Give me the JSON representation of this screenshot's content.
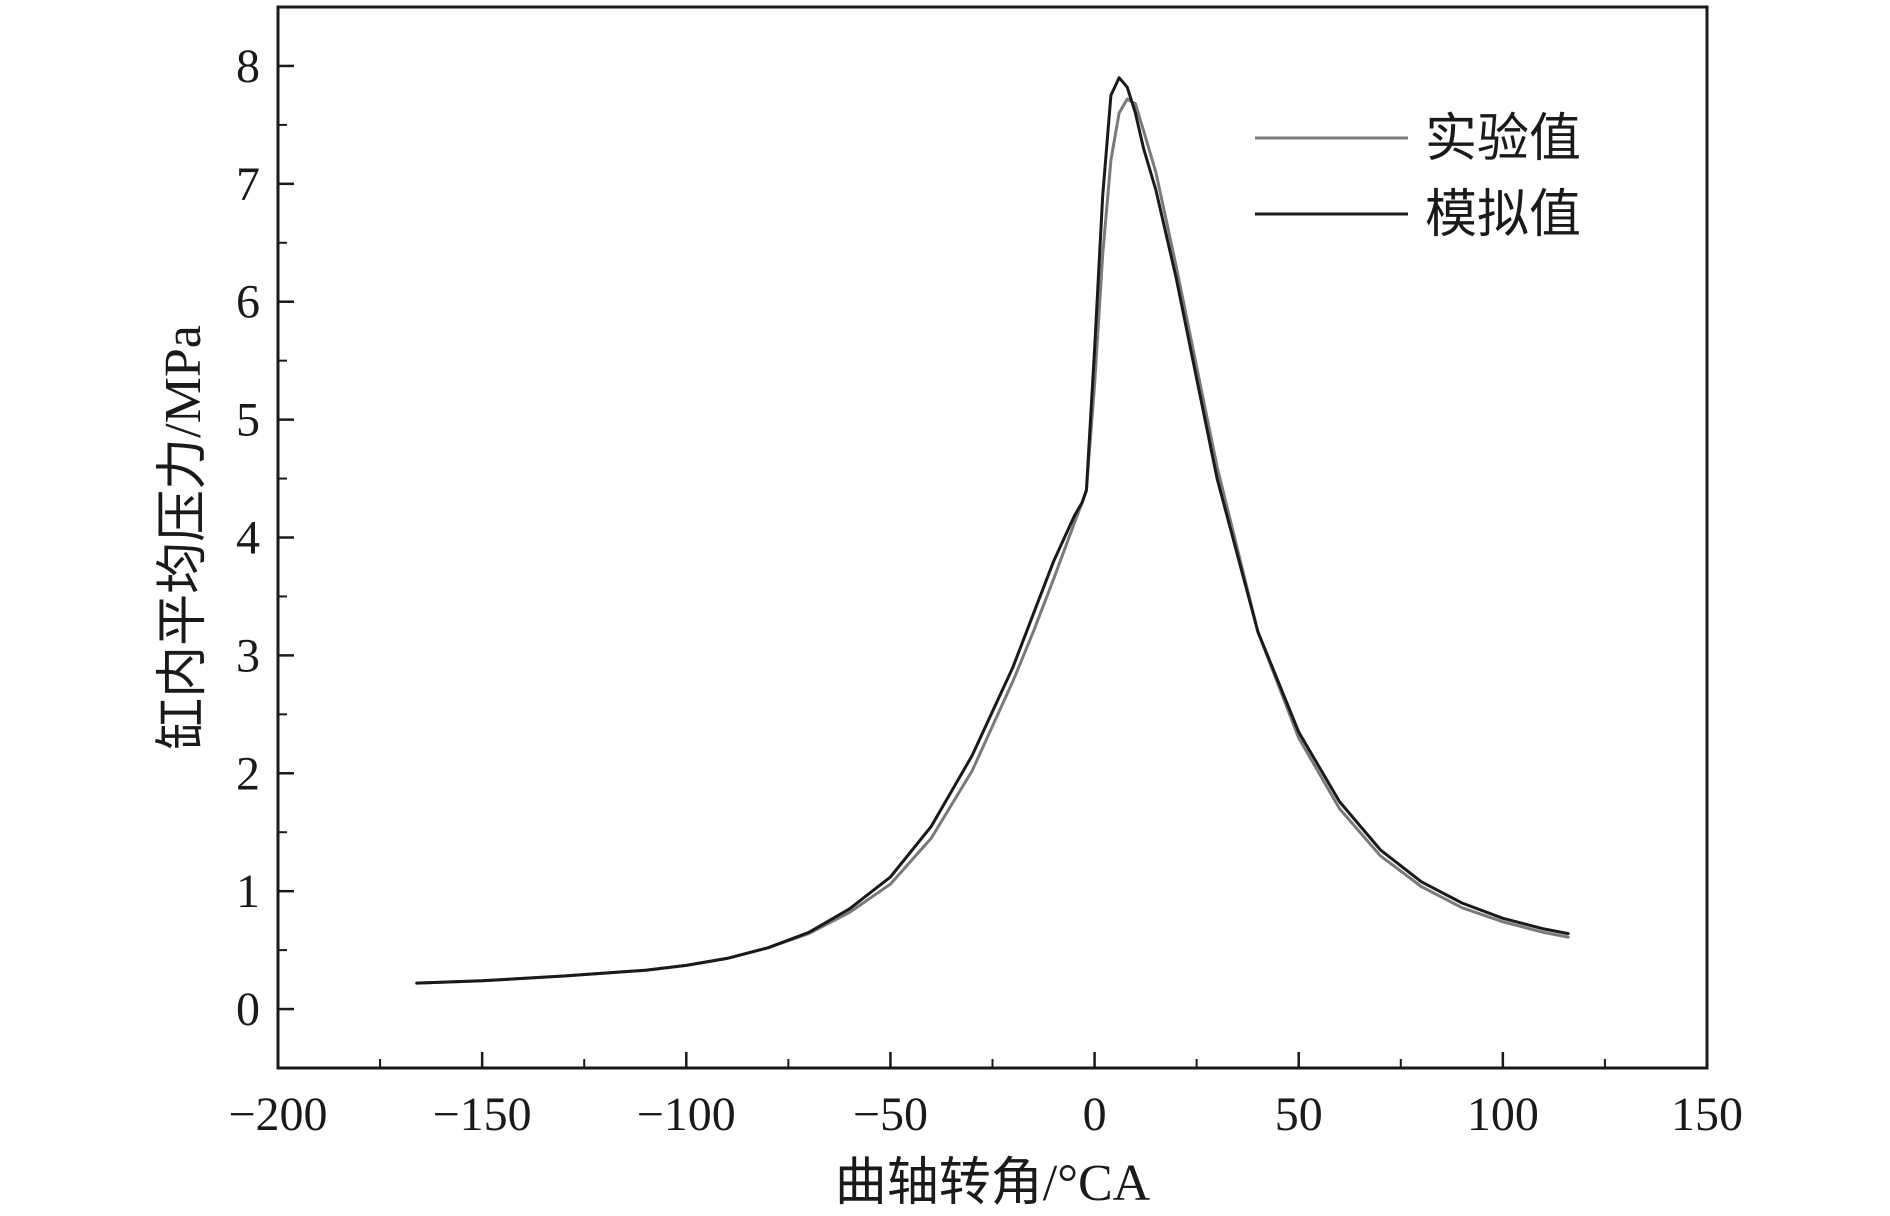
{
  "chart_data": {
    "type": "line",
    "title": "",
    "xlabel": "曲轴转角/°CA",
    "ylabel": "缸内平均压力/MPa",
    "xlim": [
      -200,
      150
    ],
    "ylim": [
      -0.5,
      8.5
    ],
    "x_ticks": [
      -200,
      -150,
      -100,
      -50,
      0,
      50,
      100,
      150
    ],
    "x_tick_labels": [
      "−200",
      "−150",
      "−100",
      "−50",
      "0",
      "50",
      "100",
      "150"
    ],
    "y_ticks": [
      0,
      1,
      2,
      3,
      4,
      5,
      6,
      7,
      8
    ],
    "y_tick_labels": [
      "0",
      "1",
      "2",
      "3",
      "4",
      "5",
      "6",
      "7",
      "8"
    ],
    "grid": false,
    "legend_position": "top-right",
    "series": [
      {
        "name": "实验值",
        "color": "#7a7a7a",
        "x": [
          -166,
          -150,
          -130,
          -110,
          -100,
          -90,
          -80,
          -70,
          -60,
          -50,
          -40,
          -30,
          -20,
          -15,
          -10,
          -5,
          -3,
          -2,
          0,
          2,
          4,
          6,
          8,
          10,
          12,
          15,
          20,
          25,
          30,
          40,
          50,
          60,
          70,
          80,
          90,
          100,
          110,
          116
        ],
        "y": [
          0.22,
          0.24,
          0.28,
          0.33,
          0.37,
          0.43,
          0.52,
          0.64,
          0.82,
          1.06,
          1.45,
          2.02,
          2.78,
          3.2,
          3.65,
          4.12,
          4.3,
          4.4,
          5.3,
          6.4,
          7.2,
          7.6,
          7.72,
          7.68,
          7.45,
          7.1,
          6.3,
          5.45,
          4.6,
          3.2,
          2.3,
          1.7,
          1.3,
          1.04,
          0.86,
          0.74,
          0.65,
          0.61
        ]
      },
      {
        "name": "模拟值",
        "color": "#1a1a1a",
        "x": [
          -166,
          -150,
          -130,
          -110,
          -100,
          -90,
          -80,
          -70,
          -60,
          -50,
          -40,
          -30,
          -20,
          -15,
          -10,
          -5,
          -3,
          -2,
          0,
          2,
          4,
          6,
          8,
          10,
          12,
          15,
          20,
          25,
          30,
          40,
          50,
          60,
          70,
          80,
          90,
          100,
          110,
          116
        ],
        "y": [
          0.22,
          0.24,
          0.28,
          0.33,
          0.37,
          0.43,
          0.52,
          0.65,
          0.85,
          1.12,
          1.55,
          2.15,
          2.9,
          3.35,
          3.8,
          4.18,
          4.3,
          4.4,
          5.6,
          6.9,
          7.75,
          7.9,
          7.82,
          7.6,
          7.3,
          6.95,
          6.2,
          5.35,
          4.5,
          3.2,
          2.35,
          1.76,
          1.35,
          1.08,
          0.9,
          0.77,
          0.68,
          0.64
        ]
      }
    ]
  }
}
